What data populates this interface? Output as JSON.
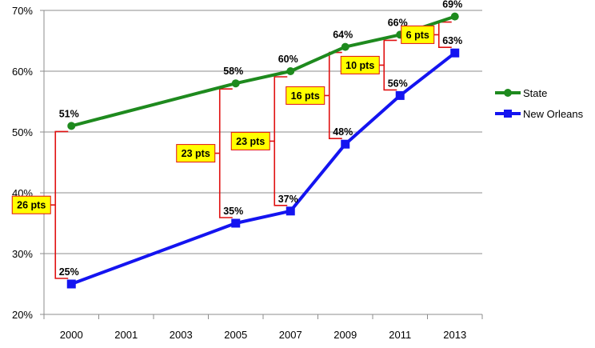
{
  "chart_data": {
    "type": "line",
    "categories": [
      "2000",
      "2001",
      "2003",
      "2005",
      "2007",
      "2009",
      "2011",
      "2013"
    ],
    "ylim": [
      20,
      70
    ],
    "yticks": [
      "20%",
      "30%",
      "40%",
      "50%",
      "60%",
      "70%"
    ],
    "grid": true,
    "legend_position": "right",
    "series": [
      {
        "name": "State",
        "color": "#1e8a1e",
        "marker": "circle",
        "values": [
          51,
          null,
          null,
          58,
          60,
          64,
          66,
          69
        ],
        "labels": [
          "51%",
          "",
          "",
          "58%",
          "60%",
          "64%",
          "66%",
          "69%"
        ]
      },
      {
        "name": "New Orleans",
        "color": "#1414f0",
        "marker": "square",
        "values": [
          25,
          null,
          null,
          35,
          37,
          48,
          56,
          63
        ],
        "labels": [
          "25%",
          "",
          "",
          "35%",
          "37%",
          "48%",
          "56%",
          "63%"
        ]
      }
    ],
    "gap_annotations": [
      {
        "category": "2000",
        "label": "26 pts"
      },
      {
        "category": "2005",
        "label": "23 pts"
      },
      {
        "category": "2007",
        "label": "23 pts"
      },
      {
        "category": "2009",
        "label": "16 pts"
      },
      {
        "category": "2011",
        "label": "10 pts"
      },
      {
        "category": "2013",
        "label": "6 pts"
      }
    ],
    "bracket_color": "#e01010",
    "callout_fill": "#ffff00"
  }
}
